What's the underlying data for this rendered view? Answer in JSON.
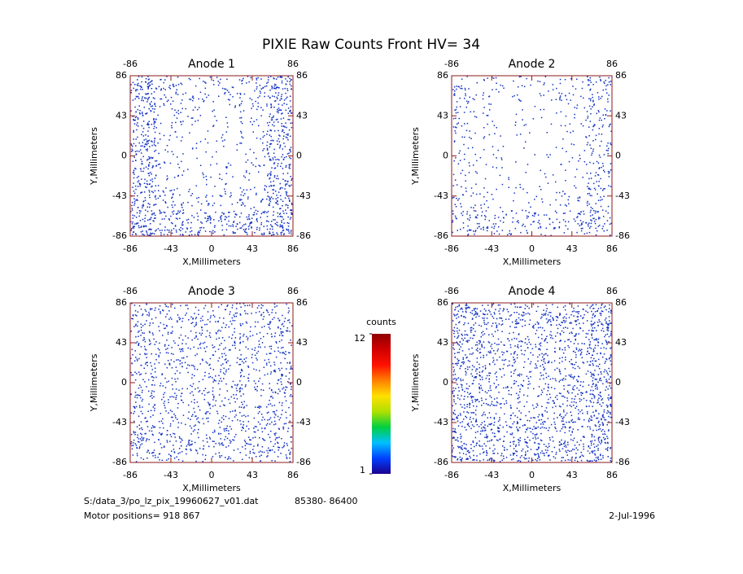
{
  "chart_data": {
    "type": "heatmap",
    "title": "PIXIE Raw Counts Front HV= 34",
    "dot_color": "#1030c0",
    "axis_color": "#8b1a1a",
    "panels": [
      {
        "title": "Anode 1",
        "xlabel": "X,Millimeters",
        "ylabel": "Y,Millimeters",
        "xlim": [
          -86,
          86
        ],
        "ylim": [
          -86,
          86
        ],
        "xticks": [
          -86,
          -43,
          0,
          43,
          86
        ],
        "yticks": [
          -86,
          -43,
          0,
          43,
          86
        ],
        "density": [
          [
            0.6,
            0.3,
            0.2,
            0.2,
            0.3,
            0.6
          ],
          [
            0.55,
            0.2,
            0.1,
            0.1,
            0.2,
            0.5
          ],
          [
            0.5,
            0.15,
            0.08,
            0.08,
            0.15,
            0.5
          ],
          [
            0.5,
            0.15,
            0.08,
            0.1,
            0.15,
            0.5
          ],
          [
            0.55,
            0.25,
            0.15,
            0.15,
            0.25,
            0.55
          ],
          [
            0.7,
            0.5,
            0.4,
            0.4,
            0.5,
            0.7
          ]
        ]
      },
      {
        "title": "Anode 2",
        "xlabel": "X,Millimeters",
        "ylabel": "Y,Millimeters",
        "xlim": [
          -86,
          86
        ],
        "ylim": [
          -86,
          86
        ],
        "xticks": [
          -86,
          -43,
          0,
          43,
          86
        ],
        "yticks": [
          -86,
          -43,
          0,
          43,
          86
        ],
        "density": [
          [
            0.25,
            0.15,
            0.12,
            0.12,
            0.2,
            0.35
          ],
          [
            0.2,
            0.1,
            0.06,
            0.06,
            0.12,
            0.3
          ],
          [
            0.15,
            0.08,
            0.04,
            0.04,
            0.08,
            0.25
          ],
          [
            0.15,
            0.08,
            0.04,
            0.05,
            0.1,
            0.25
          ],
          [
            0.2,
            0.12,
            0.08,
            0.08,
            0.15,
            0.3
          ],
          [
            0.35,
            0.3,
            0.25,
            0.25,
            0.3,
            0.4
          ]
        ]
      },
      {
        "title": "Anode 3",
        "xlabel": "X,Millimeters",
        "ylabel": "Y,Millimeters",
        "xlim": [
          -86,
          86
        ],
        "ylim": [
          -86,
          86
        ],
        "xticks": [
          -86,
          -43,
          0,
          43,
          86
        ],
        "yticks": [
          -86,
          -43,
          0,
          43,
          86
        ],
        "density": [
          [
            0.35,
            0.3,
            0.3,
            0.3,
            0.3,
            0.35
          ],
          [
            0.35,
            0.3,
            0.28,
            0.3,
            0.3,
            0.35
          ],
          [
            0.35,
            0.28,
            0.25,
            0.28,
            0.3,
            0.35
          ],
          [
            0.35,
            0.28,
            0.25,
            0.28,
            0.3,
            0.35
          ],
          [
            0.35,
            0.3,
            0.28,
            0.3,
            0.3,
            0.35
          ],
          [
            0.4,
            0.35,
            0.3,
            0.3,
            0.35,
            0.4
          ]
        ]
      },
      {
        "title": "Anode 4",
        "xlabel": "X,Millimeters",
        "ylabel": "Y,Millimeters",
        "xlim": [
          -86,
          86
        ],
        "ylim": [
          -86,
          86
        ],
        "xticks": [
          -86,
          -43,
          0,
          43,
          86
        ],
        "yticks": [
          -86,
          -43,
          0,
          43,
          86
        ],
        "density": [
          [
            0.55,
            0.45,
            0.4,
            0.4,
            0.45,
            0.6
          ],
          [
            0.5,
            0.4,
            0.35,
            0.35,
            0.4,
            0.55
          ],
          [
            0.5,
            0.38,
            0.3,
            0.3,
            0.4,
            0.55
          ],
          [
            0.5,
            0.38,
            0.3,
            0.32,
            0.4,
            0.55
          ],
          [
            0.5,
            0.42,
            0.38,
            0.38,
            0.42,
            0.55
          ],
          [
            0.6,
            0.5,
            0.45,
            0.45,
            0.5,
            0.6
          ]
        ]
      }
    ],
    "colorbar": {
      "label": "counts",
      "lim": [
        1,
        12
      ],
      "ticks": [
        1,
        12
      ],
      "colors": [
        "#1a0090",
        "#0040ff",
        "#00c0ff",
        "#00d040",
        "#b0e000",
        "#ffe000",
        "#ff8000",
        "#ff1000",
        "#d00000",
        "#900000"
      ]
    },
    "footer": {
      "file": "S:/data_3/po_lz_pix_19960627_v01.dat",
      "range": "85380- 86400",
      "motor": "Motor positions= 918 867",
      "date": "2-Jul-1996"
    }
  }
}
